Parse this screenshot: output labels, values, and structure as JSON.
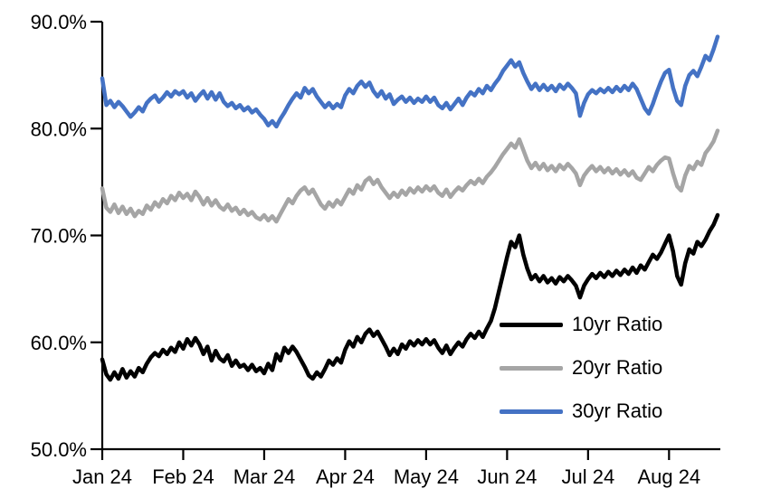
{
  "chart_data": {
    "type": "line",
    "grid": false,
    "background_color": "#ffffff",
    "axis_color": "#000000",
    "legend_position": "inside-lower-right",
    "x_axis": {
      "ticks": [
        {
          "label": "Jan 24",
          "index": 0
        },
        {
          "label": "Feb 24",
          "index": 20
        },
        {
          "label": "Mar 24",
          "index": 40
        },
        {
          "label": "Apr 24",
          "index": 60
        },
        {
          "label": "May 24",
          "index": 80
        },
        {
          "label": "Jun 24",
          "index": 100
        },
        {
          "label": "Jul 24",
          "index": 120
        },
        {
          "label": "Aug 24",
          "index": 140
        }
      ]
    },
    "y_axis": {
      "min": 50,
      "max": 90,
      "ticks": [
        {
          "label": "90.0%",
          "value": 90
        },
        {
          "label": "80.0%",
          "value": 80
        },
        {
          "label": "70.0%",
          "value": 70
        },
        {
          "label": "60.0%",
          "value": 60
        },
        {
          "label": "50.0%",
          "value": 50
        }
      ]
    },
    "series": [
      {
        "name": "10yr Ratio",
        "color": "#000000",
        "values": [
          58.4,
          57.0,
          56.5,
          57.2,
          56.6,
          57.5,
          56.7,
          57.3,
          56.8,
          57.6,
          57.2,
          58.0,
          58.6,
          59.0,
          58.7,
          59.3,
          58.9,
          59.5,
          59.1,
          60.0,
          59.4,
          60.3,
          59.7,
          60.4,
          59.8,
          58.9,
          59.6,
          58.3,
          59.2,
          58.5,
          58.2,
          58.8,
          57.8,
          58.3,
          57.7,
          57.9,
          57.4,
          57.9,
          57.3,
          57.6,
          57.1,
          58.0,
          57.4,
          58.9,
          58.3,
          59.5,
          59.0,
          59.6,
          59.1,
          58.4,
          57.7,
          56.9,
          56.6,
          57.2,
          56.8,
          57.5,
          58.3,
          57.9,
          58.5,
          58.1,
          59.3,
          60.1,
          59.6,
          60.5,
          60.0,
          60.8,
          61.2,
          60.6,
          61.0,
          60.3,
          59.6,
          58.8,
          59.4,
          58.9,
          59.8,
          59.4,
          60.1,
          59.7,
          60.2,
          59.8,
          60.3,
          59.8,
          60.2,
          59.5,
          59.0,
          59.7,
          58.9,
          59.5,
          60.0,
          59.6,
          60.3,
          60.8,
          60.4,
          61.0,
          60.5,
          61.3,
          62.0,
          63.2,
          64.8,
          66.4,
          68.0,
          69.4,
          68.9,
          70.0,
          68.2,
          66.9,
          65.9,
          66.3,
          65.7,
          66.2,
          65.6,
          66.0,
          65.5,
          66.1,
          65.7,
          66.2,
          65.8,
          65.3,
          64.2,
          65.3,
          65.9,
          66.4,
          66.0,
          66.5,
          66.1,
          66.6,
          66.2,
          66.7,
          66.3,
          66.8,
          66.4,
          67.0,
          66.5,
          67.2,
          66.8,
          67.5,
          68.2,
          67.8,
          68.4,
          69.2,
          70.0,
          68.5,
          66.2,
          65.4,
          67.4,
          68.7,
          68.3,
          69.4,
          69.0,
          69.6,
          70.4,
          71.0,
          71.9
        ]
      },
      {
        "name": "20yr Ratio",
        "color": "#A5A5A5",
        "values": [
          74.4,
          72.6,
          72.2,
          72.9,
          72.1,
          72.7,
          72.0,
          72.5,
          71.8,
          72.3,
          72.0,
          72.8,
          72.4,
          73.1,
          72.7,
          73.4,
          73.0,
          73.7,
          73.3,
          74.0,
          73.5,
          73.9,
          73.3,
          74.1,
          73.6,
          72.9,
          73.5,
          72.8,
          73.3,
          72.7,
          72.4,
          72.9,
          72.3,
          72.6,
          72.0,
          72.4,
          71.9,
          72.2,
          71.7,
          71.5,
          71.9,
          71.4,
          71.8,
          71.3,
          72.0,
          72.7,
          73.4,
          73.0,
          73.7,
          74.2,
          74.5,
          73.9,
          74.3,
          73.6,
          72.9,
          72.5,
          73.1,
          72.7,
          73.3,
          72.9,
          73.6,
          74.3,
          73.9,
          74.7,
          74.3,
          75.1,
          75.4,
          74.8,
          75.2,
          74.5,
          74.0,
          73.5,
          74.0,
          73.6,
          74.2,
          73.8,
          74.4,
          74.0,
          74.5,
          74.1,
          74.6,
          74.2,
          74.6,
          74.0,
          73.7,
          74.3,
          73.6,
          74.1,
          74.5,
          74.2,
          74.7,
          75.1,
          74.8,
          75.3,
          74.9,
          75.5,
          75.9,
          76.4,
          77.0,
          77.6,
          78.1,
          78.6,
          78.2,
          79.0,
          78.0,
          77.0,
          76.3,
          76.8,
          76.2,
          76.7,
          76.1,
          76.5,
          76.0,
          76.6,
          76.2,
          76.7,
          76.3,
          75.8,
          74.7,
          75.6,
          76.1,
          76.5,
          76.0,
          76.4,
          75.9,
          76.3,
          75.8,
          76.2,
          75.7,
          76.1,
          75.6,
          76.0,
          75.4,
          75.2,
          75.8,
          76.4,
          76.0,
          76.6,
          77.0,
          77.3,
          77.2,
          75.8,
          74.6,
          74.2,
          75.6,
          76.5,
          76.2,
          76.9,
          76.6,
          77.7,
          78.2,
          78.8,
          79.8
        ]
      },
      {
        "name": "30yr Ratio",
        "color": "#4472C4",
        "values": [
          84.7,
          82.2,
          82.6,
          82.0,
          82.5,
          82.1,
          81.6,
          81.1,
          81.5,
          82.0,
          81.6,
          82.4,
          82.8,
          83.1,
          82.5,
          82.9,
          83.4,
          83.0,
          83.5,
          83.2,
          83.5,
          82.9,
          83.3,
          82.6,
          83.1,
          83.5,
          82.8,
          83.4,
          82.7,
          83.3,
          82.5,
          82.1,
          82.4,
          81.9,
          82.2,
          81.7,
          82.0,
          81.5,
          81.8,
          81.3,
          80.9,
          80.3,
          80.7,
          80.2,
          80.9,
          81.5,
          82.2,
          82.8,
          83.3,
          82.9,
          83.8,
          83.3,
          83.7,
          83.0,
          82.5,
          82.0,
          82.4,
          81.9,
          82.3,
          82.0,
          83.1,
          83.7,
          83.3,
          84.0,
          84.4,
          83.9,
          84.3,
          83.5,
          83.0,
          83.5,
          82.8,
          83.2,
          82.3,
          82.7,
          83.0,
          82.5,
          82.9,
          82.4,
          82.8,
          82.5,
          83.0,
          82.5,
          82.9,
          82.2,
          81.9,
          82.4,
          81.8,
          82.3,
          82.8,
          82.2,
          82.9,
          83.4,
          83.1,
          83.7,
          83.3,
          84.0,
          83.6,
          84.2,
          84.7,
          85.4,
          85.9,
          86.4,
          85.8,
          86.2,
          85.2,
          84.4,
          83.7,
          84.2,
          83.6,
          84.1,
          83.6,
          84.0,
          83.5,
          84.1,
          83.7,
          84.2,
          83.8,
          83.3,
          81.2,
          82.4,
          83.2,
          83.6,
          83.3,
          83.7,
          83.4,
          83.8,
          83.4,
          83.9,
          83.5,
          84.0,
          83.6,
          84.2,
          83.7,
          82.8,
          81.9,
          81.4,
          82.3,
          83.4,
          84.4,
          85.2,
          85.5,
          83.8,
          82.6,
          82.2,
          84.0,
          85.0,
          85.4,
          84.9,
          85.8,
          86.8,
          86.4,
          87.4,
          88.6
        ]
      }
    ]
  }
}
